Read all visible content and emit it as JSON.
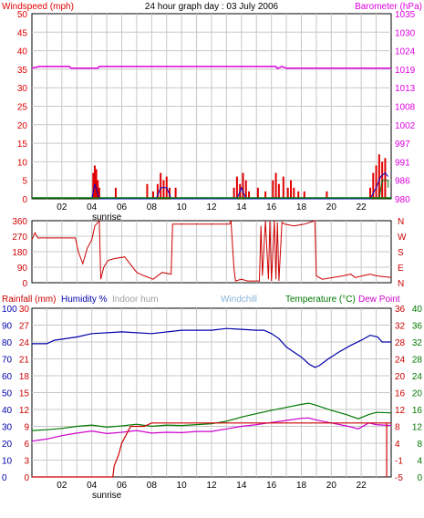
{
  "colors": {
    "windspeed": "#e00000",
    "windgust": "#0000cc",
    "barometer": "#e000e0",
    "direction": "#cc0000",
    "rainfall": "#cc0000",
    "humidity": "#0000aa",
    "indoor_hum": "#a0a0a0",
    "windchill": "#8ab4d8",
    "temperature": "#007700",
    "dewpoint": "#cc00cc",
    "grid": "#c8c8c8",
    "frame": "#000000"
  },
  "header": {
    "windspeed_label": "Windspeed (mph)",
    "title": "24 hour graph day : 03 July 2006",
    "barometer_label": "Barometer (hPa)"
  },
  "legend3": {
    "rainfall": "Rainfall (mm)",
    "humidity": "Humidity %",
    "indoor_hum": "Indoor hum",
    "windchill": "Windchill",
    "temperature": "Temperature (°C)",
    "dewpoint": "Dew Point"
  },
  "x_ticks": [
    "02",
    "04",
    "06",
    "08",
    "10",
    "12",
    "14",
    "16",
    "18",
    "20",
    "22"
  ],
  "sunrise_label": "sunrise",
  "sunrise_hour": 5.0,
  "chart_data": [
    {
      "type": "line",
      "name": "wind-barometer",
      "x_range": [
        0,
        24
      ],
      "left_axis": {
        "ticks": [
          "0",
          "5",
          "10",
          "15",
          "20",
          "25",
          "30",
          "35",
          "40",
          "45",
          "50"
        ],
        "range": [
          0,
          50
        ]
      },
      "right_axis": {
        "ticks": [
          "980",
          "986",
          "991",
          "997",
          "1002",
          "1008",
          "1013",
          "1019",
          "1024",
          "1030",
          "1035"
        ],
        "range": [
          980,
          1035
        ]
      },
      "barometer": [
        [
          0,
          1018.8
        ],
        [
          0.5,
          1019.3
        ],
        [
          2.5,
          1019.3
        ],
        [
          2.6,
          1018.8
        ],
        [
          4.4,
          1018.8
        ],
        [
          4.5,
          1019.3
        ],
        [
          16.3,
          1019.3
        ],
        [
          16.4,
          1018.7
        ],
        [
          16.7,
          1019.3
        ],
        [
          17,
          1018.8
        ],
        [
          24,
          1018.8
        ]
      ],
      "wind_bars": [
        [
          4.1,
          7
        ],
        [
          4.2,
          9
        ],
        [
          4.3,
          8
        ],
        [
          4.4,
          5
        ],
        [
          4.5,
          3
        ],
        [
          5.6,
          3
        ],
        [
          7.7,
          4
        ],
        [
          8.1,
          2
        ],
        [
          8.4,
          4
        ],
        [
          8.6,
          7
        ],
        [
          8.8,
          5
        ],
        [
          9.0,
          6
        ],
        [
          9.2,
          3
        ],
        [
          9.6,
          3
        ],
        [
          13.5,
          3
        ],
        [
          13.7,
          6
        ],
        [
          13.9,
          4
        ],
        [
          14.1,
          7
        ],
        [
          14.3,
          5
        ],
        [
          14.5,
          2
        ],
        [
          15.1,
          3
        ],
        [
          15.6,
          2
        ],
        [
          16.1,
          5
        ],
        [
          16.3,
          7
        ],
        [
          16.5,
          4
        ],
        [
          16.8,
          6
        ],
        [
          17.1,
          3
        ],
        [
          17.3,
          5
        ],
        [
          17.5,
          3
        ],
        [
          17.8,
          2
        ],
        [
          18.2,
          2
        ],
        [
          19.7,
          2
        ],
        [
          22.6,
          3
        ],
        [
          22.8,
          7
        ],
        [
          23.0,
          9
        ],
        [
          23.2,
          12
        ],
        [
          23.4,
          10
        ],
        [
          23.6,
          11
        ]
      ],
      "gust_line": [
        [
          4.0,
          0
        ],
        [
          4.2,
          4
        ],
        [
          4.5,
          0
        ],
        [
          8.3,
          0
        ],
        [
          8.6,
          3
        ],
        [
          9.0,
          3
        ],
        [
          9.3,
          0
        ],
        [
          13.7,
          0
        ],
        [
          14.0,
          3
        ],
        [
          14.3,
          0
        ],
        [
          22.6,
          0
        ],
        [
          23.0,
          3
        ],
        [
          23.3,
          6
        ],
        [
          23.6,
          7
        ],
        [
          23.8,
          6
        ]
      ],
      "humidity_marker": [
        [
          23.2,
          0
        ],
        [
          23.4,
          5
        ],
        [
          23.8,
          5
        ],
        [
          23.8,
          3
        ]
      ]
    },
    {
      "type": "line",
      "name": "wind-direction",
      "x_range": [
        0,
        24
      ],
      "left_axis": {
        "ticks": [
          "0",
          "90",
          "180",
          "270",
          "360"
        ],
        "range": [
          0,
          360
        ]
      },
      "right_axis": {
        "ticks": [
          "N",
          "E",
          "S",
          "W",
          "N"
        ]
      },
      "direction": [
        [
          0,
          250
        ],
        [
          0.2,
          290
        ],
        [
          0.4,
          260
        ],
        [
          2.9,
          260
        ],
        [
          3.1,
          180
        ],
        [
          3.4,
          110
        ],
        [
          3.7,
          200
        ],
        [
          4.0,
          250
        ],
        [
          4.2,
          330
        ],
        [
          4.5,
          360
        ],
        [
          4.6,
          20
        ],
        [
          4.8,
          90
        ],
        [
          5.1,
          130
        ],
        [
          5.5,
          140
        ],
        [
          6.2,
          150
        ],
        [
          7.0,
          60
        ],
        [
          7.5,
          40
        ],
        [
          8.1,
          20
        ],
        [
          8.7,
          60
        ],
        [
          9.3,
          50
        ],
        [
          9.4,
          340
        ],
        [
          13.2,
          340
        ],
        [
          13.3,
          360
        ],
        [
          13.5,
          80
        ],
        [
          13.6,
          10
        ],
        [
          14.0,
          20
        ],
        [
          14.4,
          10
        ],
        [
          15.2,
          10
        ],
        [
          15.3,
          330
        ],
        [
          15.4,
          40
        ],
        [
          15.6,
          360
        ],
        [
          15.8,
          20
        ],
        [
          15.9,
          360
        ],
        [
          16.0,
          10
        ],
        [
          16.2,
          360
        ],
        [
          16.3,
          20
        ],
        [
          16.4,
          350
        ],
        [
          16.5,
          10
        ],
        [
          16.7,
          350
        ],
        [
          16.9,
          340
        ],
        [
          17.5,
          330
        ],
        [
          18.2,
          340
        ],
        [
          18.9,
          360
        ],
        [
          19.0,
          40
        ],
        [
          19.4,
          20
        ],
        [
          20.8,
          40
        ],
        [
          21.3,
          50
        ],
        [
          21.6,
          30
        ],
        [
          22.1,
          40
        ],
        [
          22.6,
          50
        ],
        [
          23.0,
          40
        ],
        [
          23.5,
          35
        ],
        [
          24,
          30
        ]
      ]
    },
    {
      "type": "line",
      "name": "rain-humidity-temperature",
      "x_range": [
        0,
        24
      ],
      "rain_axis": {
        "ticks": [
          "0",
          "3",
          "6",
          "9",
          "12",
          "15",
          "18",
          "21",
          "24",
          "27",
          "30"
        ],
        "range": [
          0,
          30
        ]
      },
      "humidity_axis": {
        "ticks": [
          "0",
          "10",
          "20",
          "30",
          "40",
          "50",
          "60",
          "70",
          "80",
          "90",
          "100"
        ],
        "range": [
          0,
          100
        ]
      },
      "temp_axis_left": {
        "ticks": [
          "0",
          "4",
          "8",
          "12",
          "16",
          "20",
          "24",
          "28",
          "32",
          "36",
          "40"
        ],
        "range": [
          0,
          40
        ]
      },
      "temp_axis_right": {
        "ticks": [
          "-5",
          "-1",
          "4",
          "8",
          "12",
          "16",
          "20",
          "24",
          "28",
          "32",
          "36"
        ],
        "range": [
          -5,
          36
        ]
      },
      "rainfall": [
        [
          0,
          0
        ],
        [
          5.4,
          0
        ],
        [
          5.5,
          2
        ],
        [
          5.8,
          4
        ],
        [
          6.0,
          6
        ],
        [
          6.2,
          7
        ],
        [
          6.6,
          9
        ],
        [
          7.5,
          9
        ],
        [
          8.0,
          9.6
        ],
        [
          24,
          9.6
        ]
      ],
      "humidity": [
        [
          0,
          79
        ],
        [
          1,
          79
        ],
        [
          1.5,
          81
        ],
        [
          3,
          83
        ],
        [
          4,
          85
        ],
        [
          6,
          86
        ],
        [
          8,
          85
        ],
        [
          10,
          87
        ],
        [
          12,
          87
        ],
        [
          13,
          88
        ],
        [
          15,
          87
        ],
        [
          15.5,
          87
        ],
        [
          16,
          85
        ],
        [
          16.5,
          82
        ],
        [
          17,
          77
        ],
        [
          17.5,
          74
        ],
        [
          18,
          71
        ],
        [
          18.5,
          67
        ],
        [
          18.9,
          65
        ],
        [
          19.2,
          66
        ],
        [
          19.8,
          70
        ],
        [
          20.5,
          74
        ],
        [
          21.3,
          78
        ],
        [
          22,
          81
        ],
        [
          22.6,
          84
        ],
        [
          23.1,
          83
        ],
        [
          23.4,
          80
        ],
        [
          24,
          80
        ]
      ],
      "temperature": [
        [
          0,
          11.0
        ],
        [
          1,
          11.2
        ],
        [
          2,
          11.5
        ],
        [
          3,
          12.0
        ],
        [
          4,
          12.3
        ],
        [
          5,
          11.8
        ],
        [
          6,
          12.1
        ],
        [
          7,
          12.5
        ],
        [
          8,
          12.0
        ],
        [
          9,
          12.3
        ],
        [
          10,
          12.2
        ],
        [
          11,
          12.4
        ],
        [
          12,
          12.6
        ],
        [
          13,
          13.2
        ],
        [
          14,
          14.2
        ],
        [
          15,
          15.0
        ],
        [
          16,
          15.8
        ],
        [
          17,
          16.5
        ],
        [
          18,
          17.2
        ],
        [
          18.5,
          17.5
        ],
        [
          19,
          17.0
        ],
        [
          20,
          15.8
        ],
        [
          21,
          14.8
        ],
        [
          21.8,
          13.8
        ],
        [
          22.5,
          14.8
        ],
        [
          23,
          15.3
        ],
        [
          24,
          15.2
        ]
      ],
      "dewpoint": [
        [
          0,
          8.5
        ],
        [
          1,
          9.0
        ],
        [
          2,
          9.8
        ],
        [
          3,
          10.4
        ],
        [
          4,
          10.9
        ],
        [
          5,
          10.3
        ],
        [
          6,
          10.6
        ],
        [
          7,
          11.0
        ],
        [
          8,
          10.4
        ],
        [
          9,
          10.6
        ],
        [
          10,
          10.5
        ],
        [
          11,
          10.8
        ],
        [
          12,
          10.8
        ],
        [
          13,
          11.4
        ],
        [
          14,
          12.0
        ],
        [
          15,
          12.4
        ],
        [
          16,
          12.9
        ],
        [
          17,
          13.4
        ],
        [
          18,
          13.9
        ],
        [
          18.5,
          14.0
        ],
        [
          19,
          13.5
        ],
        [
          20,
          12.8
        ],
        [
          21,
          12.1
        ],
        [
          21.8,
          11.4
        ],
        [
          22.5,
          12.8
        ],
        [
          23,
          12.4
        ],
        [
          24,
          12.2
        ]
      ]
    }
  ]
}
